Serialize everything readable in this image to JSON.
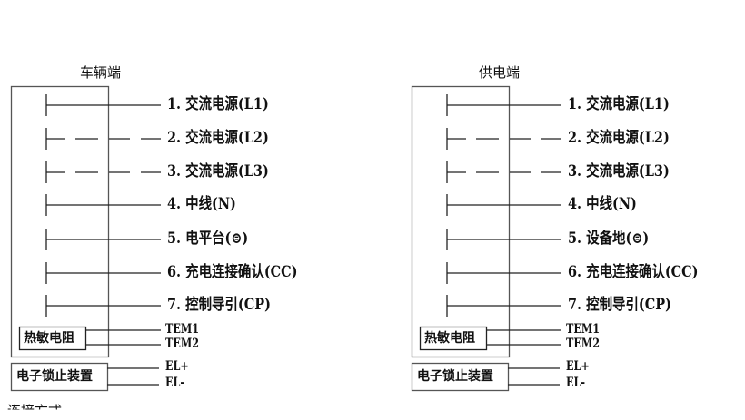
{
  "panels": [
    {
      "title": "车辆端",
      "pins": [
        {
          "label": "1. 交流电源(L1)",
          "style": "solid"
        },
        {
          "label": "2. 交流电源(L2)",
          "style": "dashed"
        },
        {
          "label": "3. 交流电源(L3)",
          "style": "dashed"
        },
        {
          "label": "4. 中线(N)",
          "style": "solid"
        },
        {
          "label": "5. 电平台(⊜)",
          "style": "solid"
        },
        {
          "label": "6. 充电连接确认(CC)",
          "style": "solid"
        },
        {
          "label": "7. 控制导引(CP)",
          "style": "solid"
        }
      ],
      "thermistor": {
        "label": "热敏电阻",
        "pins": [
          "TEM1",
          "TEM2"
        ]
      },
      "lock": {
        "label": "电子锁止装置",
        "pins": [
          "EL+",
          "EL-"
        ]
      }
    },
    {
      "title": "供电端",
      "pins": [
        {
          "label": "1. 交流电源(L1)",
          "style": "solid"
        },
        {
          "label": "2. 交流电源(L2)",
          "style": "dashed"
        },
        {
          "label": "3. 交流电源(L3)",
          "style": "dashed"
        },
        {
          "label": "4. 中线(N)",
          "style": "solid"
        },
        {
          "label": "5. 设备地(⊜)",
          "style": "solid"
        },
        {
          "label": "6. 充电连接确认(CC)",
          "style": "solid"
        },
        {
          "label": "7. 控制导引(CP)",
          "style": "solid"
        }
      ],
      "thermistor": {
        "label": "热敏电阻",
        "pins": [
          "TEM1",
          "TEM2"
        ]
      },
      "lock": {
        "label": "电子锁止装置",
        "pins": [
          "EL+",
          "EL-"
        ]
      }
    }
  ],
  "footer_clipped": "连接方式"
}
